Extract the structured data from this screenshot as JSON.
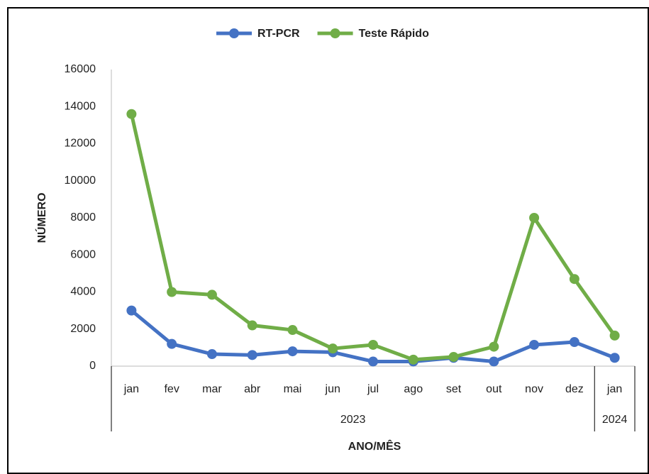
{
  "chart_data": {
    "type": "line",
    "categories": [
      "jan",
      "fev",
      "mar",
      "abr",
      "mai",
      "jun",
      "jul",
      "ago",
      "set",
      "out",
      "nov",
      "dez",
      "jan"
    ],
    "groups": [
      {
        "label": "2023",
        "count": 12
      },
      {
        "label": "2024",
        "count": 1
      }
    ],
    "series": [
      {
        "name": "RT-PCR",
        "color": "#4472c4",
        "values": [
          3000,
          1200,
          650,
          600,
          800,
          750,
          250,
          250,
          450,
          250,
          1150,
          1300,
          450
        ]
      },
      {
        "name": "Teste Rápido",
        "color": "#70ad47",
        "values": [
          13600,
          4000,
          3850,
          2200,
          1950,
          950,
          1150,
          350,
          500,
          1050,
          8000,
          4700,
          1650
        ]
      }
    ],
    "ylim": [
      0,
      16000
    ],
    "yticks": [
      0,
      2000,
      4000,
      6000,
      8000,
      10000,
      12000,
      14000,
      16000
    ],
    "ylabel": "NÚMERO",
    "xlabel": "ANO/MÊS",
    "legend": "top"
  }
}
